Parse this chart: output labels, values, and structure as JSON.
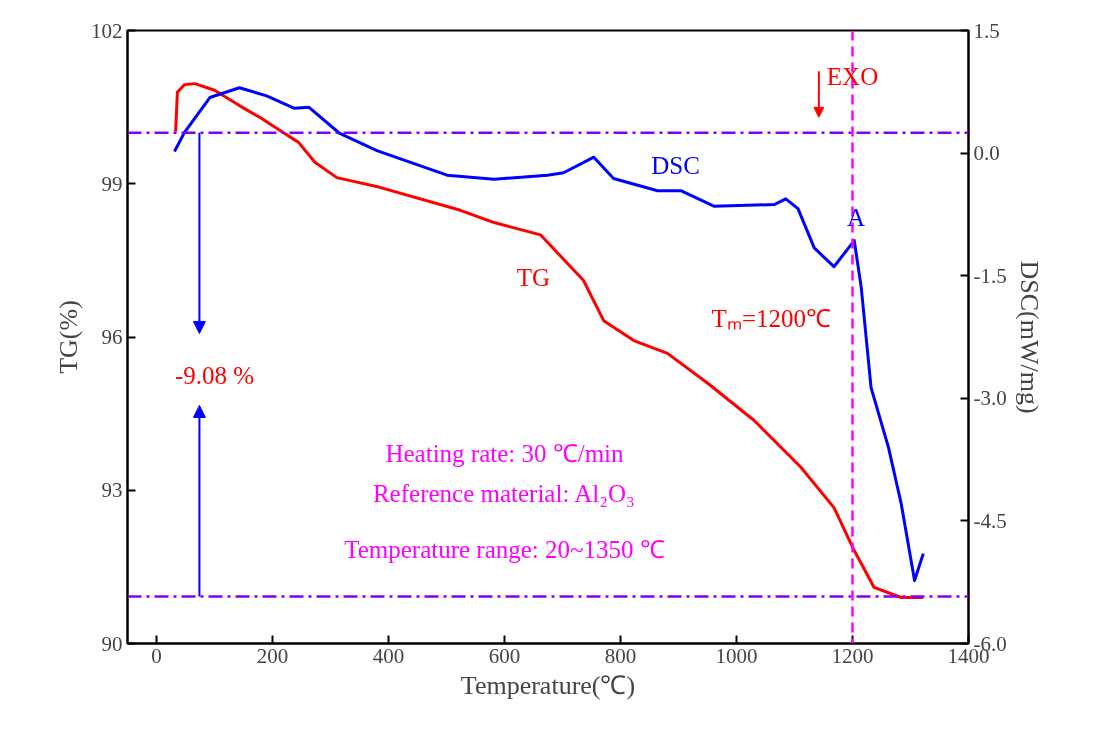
{
  "chart_data": {
    "type": "line",
    "xlabel": "Temperature(℃)",
    "ylabel": "TG(%)",
    "y2label": "DSC(mW/mg)",
    "xlim": [
      -50,
      1400
    ],
    "xticks": [
      0,
      200,
      400,
      600,
      800,
      1000,
      1200,
      1400
    ],
    "ylim": [
      90,
      102
    ],
    "yticks": [
      90,
      93,
      96,
      99,
      102
    ],
    "y2lim": [
      -6,
      1.5
    ],
    "y2ticks": [
      {
        "value": -6,
        "label": "-6.0"
      },
      {
        "value": -4.5,
        "label": "-4.5"
      },
      {
        "value": -3,
        "label": "-3.0"
      },
      {
        "value": -1.5,
        "label": "-1.5"
      },
      {
        "value": 0,
        "label": "0.0"
      },
      {
        "value": 1.5,
        "label": "1.5"
      }
    ],
    "series": [
      {
        "color": "#ff0000",
        "x": [
          33,
          36,
          48,
          66,
          100,
          143,
          178,
          219,
          245,
          273,
          311,
          385,
          524,
          582,
          662,
          736,
          771,
          823,
          881,
          951,
          1030,
          1111,
          1168,
          1203,
          1237,
          1284,
          1322
        ],
        "values": [
          100.02,
          100.79,
          100.94,
          100.96,
          100.83,
          100.53,
          100.3,
          100.0,
          99.81,
          99.42,
          99.12,
          98.93,
          98.48,
          98.24,
          98.0,
          97.11,
          96.32,
          95.93,
          95.68,
          95.09,
          94.37,
          93.45,
          92.66,
          91.82,
          91.1,
          90.9,
          90.9
        ]
      },
      {
        "color": "#0000ff",
        "axis": "y2",
        "x": [
          31,
          48,
          92,
          143,
          190,
          237,
          263,
          316,
          380,
          501,
          582,
          674,
          702,
          754,
          788,
          864,
          904,
          961,
          1065,
          1085,
          1106,
          1134,
          1168,
          1203,
          1215,
          1232,
          1262,
          1284,
          1307,
          1322
        ],
        "values": [
          0.02,
          0.25,
          0.68,
          0.8,
          0.7,
          0.55,
          0.56,
          0.24,
          0.03,
          -0.27,
          -0.32,
          -0.27,
          -0.24,
          -0.05,
          -0.31,
          -0.46,
          -0.46,
          -0.65,
          -0.63,
          -0.56,
          -0.68,
          -1.16,
          -1.39,
          -1.07,
          -1.64,
          -2.87,
          -3.6,
          -4.29,
          -5.23,
          -4.9
        ]
      }
    ],
    "ref_lines": [
      {
        "axis": "y",
        "value": 100,
        "color": "#8000ff",
        "line_style": "dashdot"
      },
      {
        "axis": "y",
        "value": 90.92,
        "color": "#8000ff",
        "line_style": "dashdot"
      },
      {
        "axis": "x",
        "value": 1200,
        "color": "#ff00ff",
        "line_style": "dashed"
      }
    ],
    "annotations": [
      "TG",
      "DSC",
      {
        "text": "A",
        "x": 1206,
        "y": 98.34
      },
      "Tₘ=1200℃",
      "-9.08 %",
      {
        "text": "EXO",
        "x": 1200,
        "y": 101.1
      },
      "Heating rate: 30 ℃/min",
      "Reference material: Al₂O₃",
      "Temperature range: 20~1350 ℃"
    ],
    "marker": "none"
  }
}
